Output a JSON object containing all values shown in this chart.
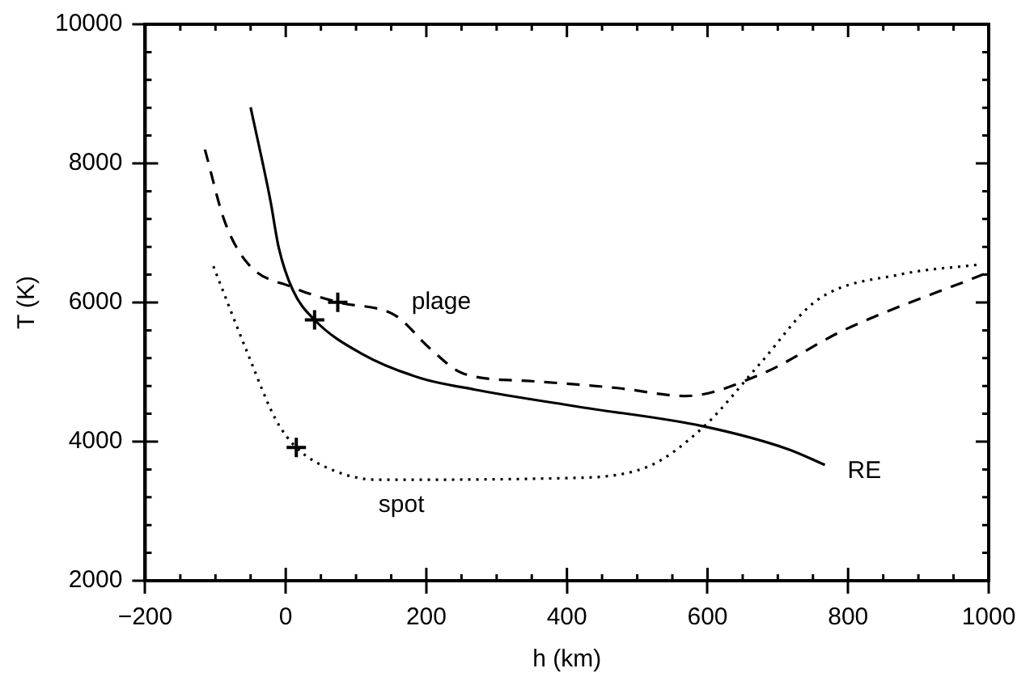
{
  "chart_data": {
    "type": "line",
    "xlabel": "h (km)",
    "ylabel": "T (K)",
    "xlim": [
      -200,
      1000
    ],
    "xticks": [
      -200,
      0,
      200,
      400,
      600,
      800,
      1000
    ],
    "ylim": [
      2000,
      10000
    ],
    "yticks": [
      2000,
      4000,
      6000,
      8000,
      10000
    ],
    "grid": false,
    "legend": false,
    "marker": "none",
    "series": [
      {
        "name": "RE",
        "color": "#000000",
        "line_style": "solid",
        "x": [
          -50,
          -22,
          -10,
          10,
          41,
          108,
          189,
          269,
          415,
          593,
          714,
          767
        ],
        "values": [
          8806,
          7474,
          6790,
          6180,
          5750,
          5264,
          4922,
          4747,
          4503,
          4222,
          3893,
          3665
        ]
      },
      {
        "name": "plage",
        "color": "#000000",
        "line_style": "dashed",
        "x": [
          -115,
          -87,
          -54,
          10,
          74,
          156,
          205,
          253,
          350,
          472,
          569,
          674,
          795,
          993
        ],
        "values": [
          8200,
          7170,
          6560,
          6217,
          6004,
          5813,
          5340,
          4976,
          4869,
          4770,
          4656,
          4960,
          5607,
          6407
        ]
      },
      {
        "name": "spot",
        "color": "#000000",
        "line_style": "dotted",
        "x": [
          -103,
          -54,
          -14,
          15,
          67,
          132,
          391,
          512,
          593,
          674,
          755,
          876,
          985
        ],
        "values": [
          6521,
          5264,
          4313,
          3916,
          3589,
          3451,
          3474,
          3627,
          4199,
          5113,
          6027,
          6407,
          6544
        ]
      },
      {
        "type": "scatter",
        "color": "#000000",
        "marker": "cross",
        "x": [
          41,
          74,
          15
        ],
        "values": [
          5750,
          6004,
          3916
        ]
      }
    ]
  }
}
